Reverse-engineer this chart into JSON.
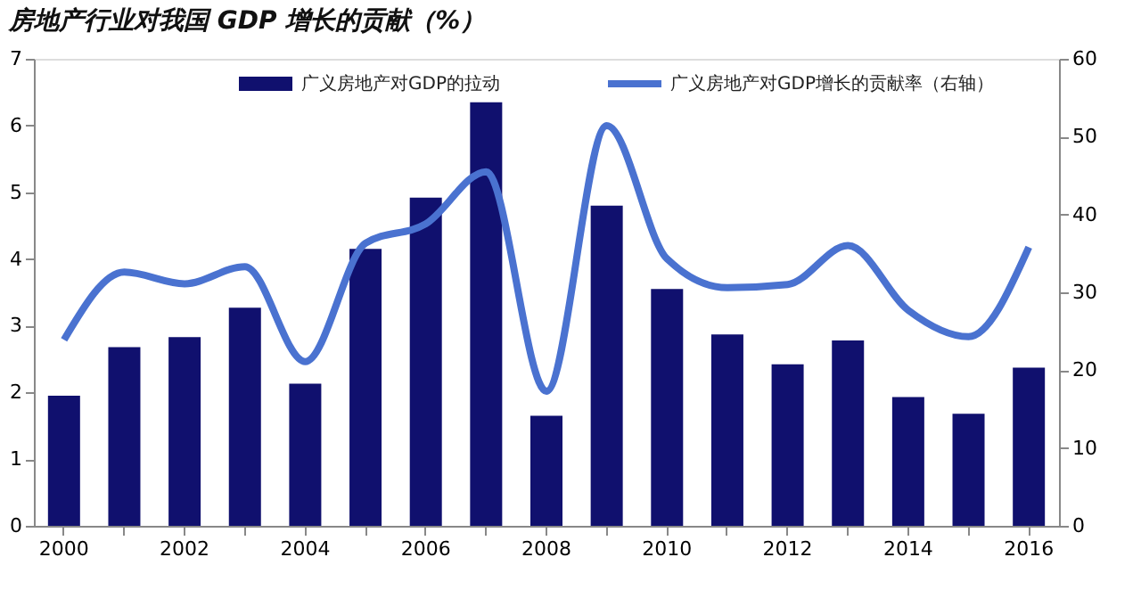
{
  "chart_data": {
    "type": "bar",
    "title": "房地产行业对我国 GDP 增长的贡献（%）",
    "categories": [
      "2000",
      null,
      "2002",
      null,
      "2004",
      null,
      "2006",
      null,
      "2008",
      null,
      "2010",
      null,
      "2012",
      null,
      "2014",
      null,
      "2016"
    ],
    "series": [
      {
        "name": "广义房地产对GDP的拉动",
        "color": "#10106e",
        "values": [
          1.95,
          2.68,
          2.83,
          3.27,
          2.13,
          4.15,
          4.92,
          6.35,
          1.65,
          4.8,
          3.55,
          2.87,
          2.42,
          2.78,
          1.93,
          1.68,
          2.37
        ]
      },
      {
        "name": "广义房地产对GDP增长的贡献率（右轴）",
        "color": "#4a72d0",
        "type": "line",
        "axis": "y2",
        "values": [
          23.9,
          32.6,
          31.1,
          33.3,
          21.1,
          36.3,
          38.8,
          45.5,
          17.3,
          51.4,
          34.3,
          30.6,
          31,
          36,
          27.7,
          24.3,
          35.8
        ]
      }
    ],
    "ylim": [
      0,
      7
    ],
    "yticks": [
      0,
      1,
      2,
      3,
      4,
      5,
      6,
      7
    ],
    "y2lim": [
      0,
      60
    ],
    "y2ticks": [
      0,
      10,
      20,
      30,
      40,
      50,
      60
    ],
    "grid": false,
    "legend": "top",
    "line_style": "solid",
    "marker": "none"
  }
}
